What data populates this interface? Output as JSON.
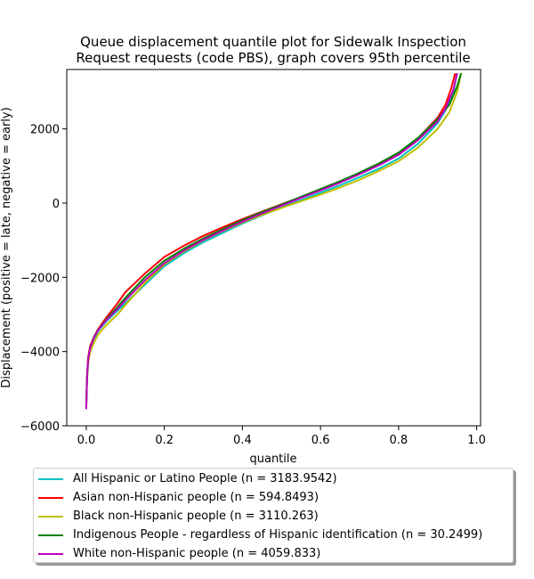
{
  "chart_data": {
    "type": "line",
    "title": "Queue displacement quantile plot for Sidewalk Inspection\nRequest  requests (code PBS), graph covers 95th percentile",
    "xlabel": "quantile",
    "ylabel": "Displacement (positive = late, negative = early)",
    "xlim": [
      -0.05,
      1.01
    ],
    "ylim": [
      -6000,
      3600
    ],
    "x_ticks": [
      0.0,
      0.2,
      0.4,
      0.6,
      0.8,
      1.0
    ],
    "x_tick_labels": [
      "0.0",
      "0.2",
      "0.4",
      "0.6",
      "0.8",
      "1.0"
    ],
    "y_ticks": [
      -6000,
      -4000,
      -2000,
      0,
      2000
    ],
    "y_tick_labels": [
      "−6000",
      "−4000",
      "−2000",
      "0",
      "2000"
    ],
    "grid": false,
    "legend_position": "below",
    "series": [
      {
        "name": "All Hispanic or Latino People (n = 3183.9542)",
        "color": "#00bfbf",
        "x": [
          0,
          0.002,
          0.005,
          0.01,
          0.02,
          0.03,
          0.05,
          0.08,
          0.1,
          0.15,
          0.2,
          0.25,
          0.3,
          0.35,
          0.4,
          0.45,
          0.5,
          0.55,
          0.6,
          0.65,
          0.7,
          0.75,
          0.8,
          0.85,
          0.9,
          0.92,
          0.94,
          0.95
        ],
        "y": [
          -5500,
          -4700,
          -4200,
          -3900,
          -3650,
          -3450,
          -3200,
          -2900,
          -2700,
          -2200,
          -1700,
          -1350,
          -1050,
          -800,
          -550,
          -330,
          -120,
          80,
          280,
          480,
          700,
          930,
          1200,
          1600,
          2150,
          2500,
          3000,
          3500
        ]
      },
      {
        "name": "Asian non-Hispanic people (n = 594.8493)",
        "color": "#ff0000",
        "x": [
          0,
          0.002,
          0.005,
          0.01,
          0.02,
          0.03,
          0.05,
          0.08,
          0.1,
          0.15,
          0.2,
          0.25,
          0.3,
          0.35,
          0.4,
          0.45,
          0.5,
          0.55,
          0.6,
          0.65,
          0.7,
          0.75,
          0.8,
          0.85,
          0.9,
          0.92,
          0.935,
          0.945
        ],
        "y": [
          -5500,
          -4650,
          -4150,
          -3850,
          -3600,
          -3400,
          -3100,
          -2700,
          -2400,
          -1900,
          -1450,
          -1150,
          -880,
          -650,
          -430,
          -230,
          -30,
          160,
          360,
          560,
          780,
          1030,
          1330,
          1750,
          2300,
          2650,
          3100,
          3500
        ]
      },
      {
        "name": "Black non-Hispanic people (n = 3110.263)",
        "color": "#bfbf00",
        "x": [
          0,
          0.002,
          0.005,
          0.01,
          0.02,
          0.03,
          0.05,
          0.08,
          0.1,
          0.15,
          0.2,
          0.25,
          0.3,
          0.35,
          0.4,
          0.45,
          0.5,
          0.55,
          0.6,
          0.65,
          0.7,
          0.75,
          0.8,
          0.85,
          0.9,
          0.93,
          0.95,
          0.96
        ],
        "y": [
          -5500,
          -4800,
          -4300,
          -4000,
          -3750,
          -3550,
          -3300,
          -3000,
          -2750,
          -2150,
          -1650,
          -1300,
          -1000,
          -750,
          -520,
          -320,
          -130,
          50,
          230,
          420,
          630,
          870,
          1130,
          1500,
          2000,
          2450,
          3000,
          3500
        ]
      },
      {
        "name": "Indigenous People - regardless of Hispanic identification (n = 30.2499)",
        "color": "#008000",
        "x": [
          0,
          0.002,
          0.005,
          0.01,
          0.02,
          0.03,
          0.05,
          0.08,
          0.1,
          0.15,
          0.2,
          0.25,
          0.3,
          0.35,
          0.4,
          0.45,
          0.5,
          0.55,
          0.6,
          0.65,
          0.7,
          0.75,
          0.8,
          0.85,
          0.9,
          0.93,
          0.95,
          0.96
        ],
        "y": [
          -5500,
          -4700,
          -4200,
          -3880,
          -3600,
          -3420,
          -3150,
          -2800,
          -2550,
          -2000,
          -1550,
          -1230,
          -950,
          -700,
          -460,
          -240,
          -40,
          170,
          380,
          590,
          820,
          1070,
          1360,
          1760,
          2260,
          2650,
          3150,
          3500
        ]
      },
      {
        "name": "White non-Hispanic people (n = 4059.833)",
        "color": "#bf00bf",
        "x": [
          0,
          0.002,
          0.005,
          0.01,
          0.02,
          0.03,
          0.05,
          0.08,
          0.1,
          0.15,
          0.2,
          0.25,
          0.3,
          0.35,
          0.4,
          0.45,
          0.5,
          0.55,
          0.6,
          0.65,
          0.7,
          0.75,
          0.8,
          0.85,
          0.9,
          0.92,
          0.94,
          0.95
        ],
        "y": [
          -5550,
          -4720,
          -4200,
          -3900,
          -3620,
          -3430,
          -3170,
          -2850,
          -2620,
          -2080,
          -1620,
          -1280,
          -990,
          -740,
          -500,
          -280,
          -70,
          140,
          340,
          550,
          780,
          1020,
          1300,
          1700,
          2200,
          2550,
          3050,
          3500
        ]
      }
    ]
  }
}
